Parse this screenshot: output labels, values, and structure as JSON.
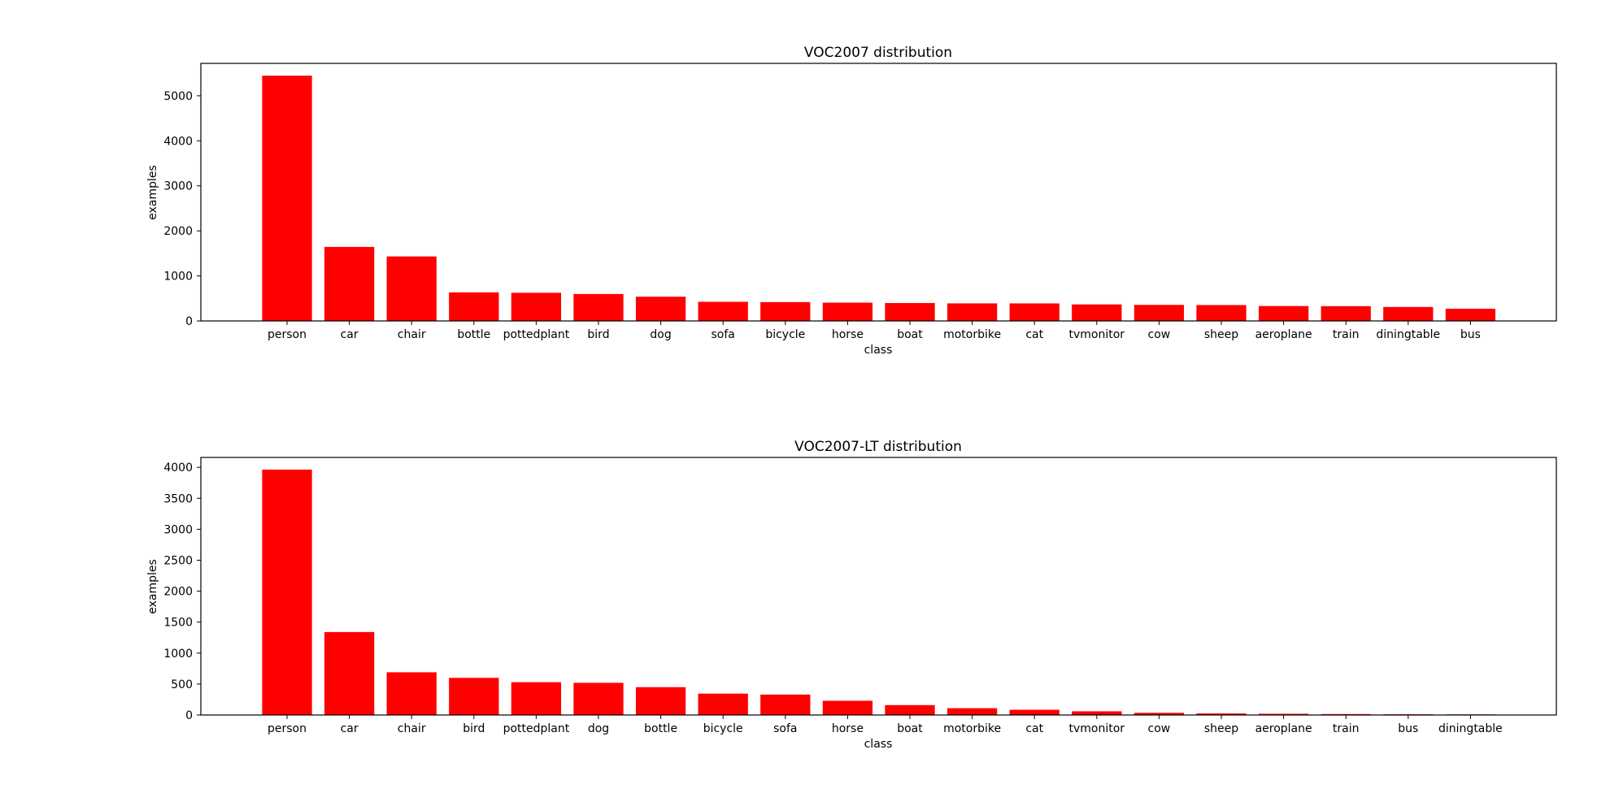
{
  "colors": {
    "bar": "#ff0000",
    "axis": "#000000",
    "background": "#ffffff"
  },
  "chart_data": [
    {
      "type": "bar",
      "title": "VOC2007 distribution",
      "xlabel": "class",
      "ylabel": "examples",
      "ylim": [
        0,
        5720
      ],
      "yticks": [
        0,
        1000,
        2000,
        3000,
        4000,
        5000
      ],
      "grid": false,
      "categories": [
        "person",
        "car",
        "chair",
        "bottle",
        "pottedplant",
        "bird",
        "dog",
        "sofa",
        "bicycle",
        "horse",
        "boat",
        "motorbike",
        "cat",
        "tvmonitor",
        "cow",
        "sheep",
        "aeroplane",
        "train",
        "diningtable",
        "bus"
      ],
      "values": [
        5447,
        1644,
        1432,
        634,
        625,
        599,
        538,
        425,
        418,
        406,
        398,
        390,
        389,
        367,
        356,
        353,
        331,
        328,
        310,
        272
      ]
    },
    {
      "type": "bar",
      "title": "VOC2007-LT distribution",
      "xlabel": "class",
      "ylabel": "examples",
      "ylim": [
        0,
        4160
      ],
      "yticks": [
        0,
        500,
        1000,
        1500,
        2000,
        2500,
        3000,
        3500,
        4000
      ],
      "grid": false,
      "categories": [
        "person",
        "car",
        "chair",
        "bird",
        "pottedplant",
        "dog",
        "bottle",
        "bicycle",
        "sofa",
        "horse",
        "boat",
        "motorbike",
        "cat",
        "tvmonitor",
        "cow",
        "sheep",
        "aeroplane",
        "train",
        "bus",
        "diningtable"
      ],
      "values": [
        3963,
        1340,
        690,
        600,
        530,
        520,
        450,
        345,
        330,
        230,
        160,
        110,
        85,
        60,
        35,
        25,
        20,
        15,
        12,
        10
      ]
    }
  ]
}
